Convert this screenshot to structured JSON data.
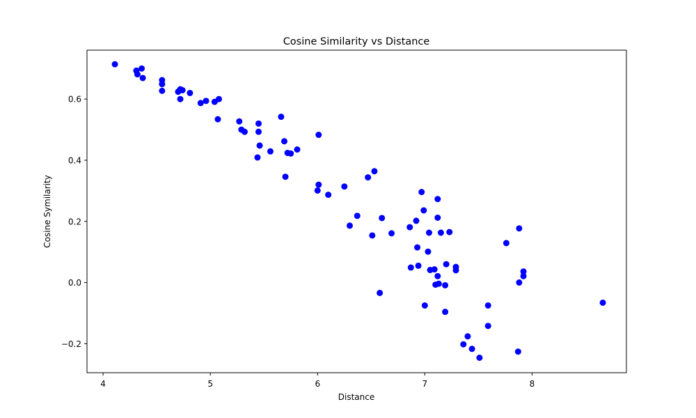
{
  "chart_data": {
    "type": "scatter",
    "title": "Cosine Similarity vs Distance",
    "xlabel": "Distance",
    "ylabel": "Cosine Symilarity",
    "xlim": [
      3.85,
      8.88
    ],
    "ylim": [
      -0.295,
      0.76
    ],
    "xticks": [
      4,
      5,
      6,
      7,
      8
    ],
    "yticks": [
      -0.2,
      0.0,
      0.2,
      0.4,
      0.6
    ],
    "xtick_labels": [
      "4",
      "5",
      "6",
      "7",
      "8"
    ],
    "ytick_labels": [
      "−0.2",
      "0.0",
      "0.2",
      "0.4",
      "0.6"
    ],
    "grid": false,
    "marker_color": "#0000ff",
    "series": [
      {
        "points": [
          [
            4.11,
            0.714
          ],
          [
            4.31,
            0.693
          ],
          [
            4.32,
            0.681
          ],
          [
            4.36,
            0.7
          ],
          [
            4.37,
            0.669
          ],
          [
            4.55,
            0.662
          ],
          [
            4.55,
            0.649
          ],
          [
            4.55,
            0.627
          ],
          [
            4.7,
            0.624
          ],
          [
            4.72,
            0.632
          ],
          [
            4.72,
            0.6
          ],
          [
            4.74,
            0.629
          ],
          [
            4.81,
            0.62
          ],
          [
            4.91,
            0.587
          ],
          [
            4.96,
            0.594
          ],
          [
            5.04,
            0.591
          ],
          [
            5.08,
            0.6
          ],
          [
            5.07,
            0.534
          ],
          [
            5.27,
            0.527
          ],
          [
            5.29,
            0.5
          ],
          [
            5.32,
            0.493
          ],
          [
            5.45,
            0.52
          ],
          [
            5.45,
            0.493
          ],
          [
            5.46,
            0.448
          ],
          [
            5.44,
            0.409
          ],
          [
            5.56,
            0.429
          ],
          [
            5.66,
            0.542
          ],
          [
            5.69,
            0.462
          ],
          [
            5.72,
            0.424
          ],
          [
            5.75,
            0.422
          ],
          [
            5.81,
            0.435
          ],
          [
            5.7,
            0.346
          ],
          [
            6.01,
            0.483
          ],
          [
            6.01,
            0.32
          ],
          [
            6.0,
            0.301
          ],
          [
            6.1,
            0.287
          ],
          [
            6.25,
            0.314
          ],
          [
            6.47,
            0.344
          ],
          [
            6.53,
            0.364
          ],
          [
            6.37,
            0.218
          ],
          [
            6.3,
            0.186
          ],
          [
            6.6,
            0.211
          ],
          [
            6.51,
            0.154
          ],
          [
            6.69,
            0.161
          ],
          [
            6.58,
            -0.034
          ],
          [
            6.97,
            0.296
          ],
          [
            6.99,
            0.236
          ],
          [
            7.12,
            0.273
          ],
          [
            6.92,
            0.202
          ],
          [
            7.12,
            0.212
          ],
          [
            6.86,
            0.181
          ],
          [
            7.04,
            0.163
          ],
          [
            7.15,
            0.163
          ],
          [
            7.23,
            0.165
          ],
          [
            6.93,
            0.115
          ],
          [
            7.03,
            0.101
          ],
          [
            6.87,
            0.049
          ],
          [
            6.94,
            0.055
          ],
          [
            7.05,
            0.041
          ],
          [
            7.09,
            0.043
          ],
          [
            7.12,
            0.021
          ],
          [
            7.1,
            -0.007
          ],
          [
            7.13,
            -0.004
          ],
          [
            7.2,
            0.06
          ],
          [
            7.29,
            0.051
          ],
          [
            7.29,
            0.04
          ],
          [
            7.19,
            -0.009
          ],
          [
            7.0,
            -0.075
          ],
          [
            7.19,
            -0.096
          ],
          [
            7.59,
            -0.075
          ],
          [
            7.59,
            -0.142
          ],
          [
            7.4,
            -0.176
          ],
          [
            7.36,
            -0.202
          ],
          [
            7.44,
            -0.217
          ],
          [
            7.51,
            -0.246
          ],
          [
            7.76,
            0.129
          ],
          [
            7.88,
            0.177
          ],
          [
            7.88,
            0.0
          ],
          [
            7.92,
            0.036
          ],
          [
            7.92,
            0.021
          ],
          [
            7.87,
            -0.226
          ],
          [
            8.66,
            -0.066
          ]
        ]
      }
    ]
  }
}
